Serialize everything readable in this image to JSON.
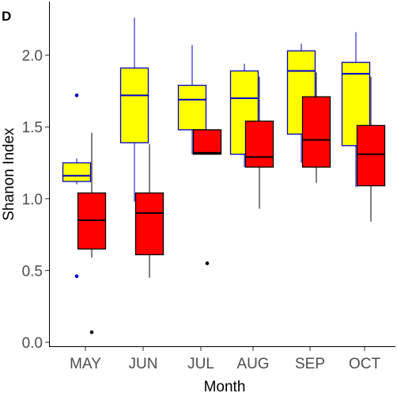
{
  "chart_data": {
    "type": "boxplot",
    "panel_label": "D",
    "xlabel": "Month",
    "ylabel": "Shanon Index",
    "ylim": [
      0.0,
      2.35
    ],
    "yticks": [
      "0.0",
      "0.5",
      "1.0",
      "1.5",
      "2.0"
    ],
    "categories": [
      "MAY",
      "JUN",
      "JUL",
      "AUG",
      "SEP",
      "OCT"
    ],
    "grid": false,
    "colors": {
      "series_a_fill": "#ffff00",
      "series_a_line": "#0000cc",
      "series_b_fill": "#ff0000",
      "series_b_line": "#000000",
      "axis": "#000000",
      "tick_text": "#4d4d4d"
    },
    "series": [
      {
        "fill": "#ffff00",
        "line": "#0000cc",
        "boxes": [
          {
            "whisker_low": 1.1,
            "q1": 1.12,
            "median": 1.16,
            "q3": 1.25,
            "whisker_high": 1.28,
            "outliers": [
              1.72,
              0.46
            ]
          },
          {
            "whisker_low": 0.98,
            "q1": 1.39,
            "median": 1.72,
            "q3": 1.91,
            "whisker_high": 2.26,
            "outliers": []
          },
          {
            "whisker_low": 1.31,
            "q1": 1.48,
            "median": 1.69,
            "q3": 1.79,
            "whisker_high": 2.07,
            "outliers": []
          },
          {
            "whisker_low": 1.22,
            "q1": 1.31,
            "median": 1.7,
            "q3": 1.89,
            "whisker_high": 1.94,
            "outliers": []
          },
          {
            "whisker_low": 1.25,
            "q1": 1.45,
            "median": 1.89,
            "q3": 2.03,
            "whisker_high": 2.08,
            "outliers": []
          },
          {
            "whisker_low": 1.08,
            "q1": 1.37,
            "median": 1.87,
            "q3": 1.95,
            "whisker_high": 2.16,
            "outliers": []
          }
        ]
      },
      {
        "fill": "#ff0000",
        "line": "#000000",
        "boxes": [
          {
            "whisker_low": 0.59,
            "q1": 0.65,
            "median": 0.85,
            "q3": 1.04,
            "whisker_high": 1.46,
            "outliers": [
              0.07
            ]
          },
          {
            "whisker_low": 0.45,
            "q1": 0.61,
            "median": 0.9,
            "q3": 1.04,
            "whisker_high": 1.38,
            "outliers": []
          },
          {
            "whisker_low": 1.31,
            "q1": 1.31,
            "median": 1.32,
            "q3": 1.48,
            "whisker_high": 1.48,
            "outliers": [
              0.55
            ]
          },
          {
            "whisker_low": 0.93,
            "q1": 1.22,
            "median": 1.29,
            "q3": 1.54,
            "whisker_high": 1.85,
            "outliers": []
          },
          {
            "whisker_low": 1.11,
            "q1": 1.22,
            "median": 1.41,
            "q3": 1.71,
            "whisker_high": 1.88,
            "outliers": []
          },
          {
            "whisker_low": 0.84,
            "q1": 1.09,
            "median": 1.31,
            "q3": 1.51,
            "whisker_high": 1.85,
            "outliers": []
          }
        ]
      }
    ]
  }
}
